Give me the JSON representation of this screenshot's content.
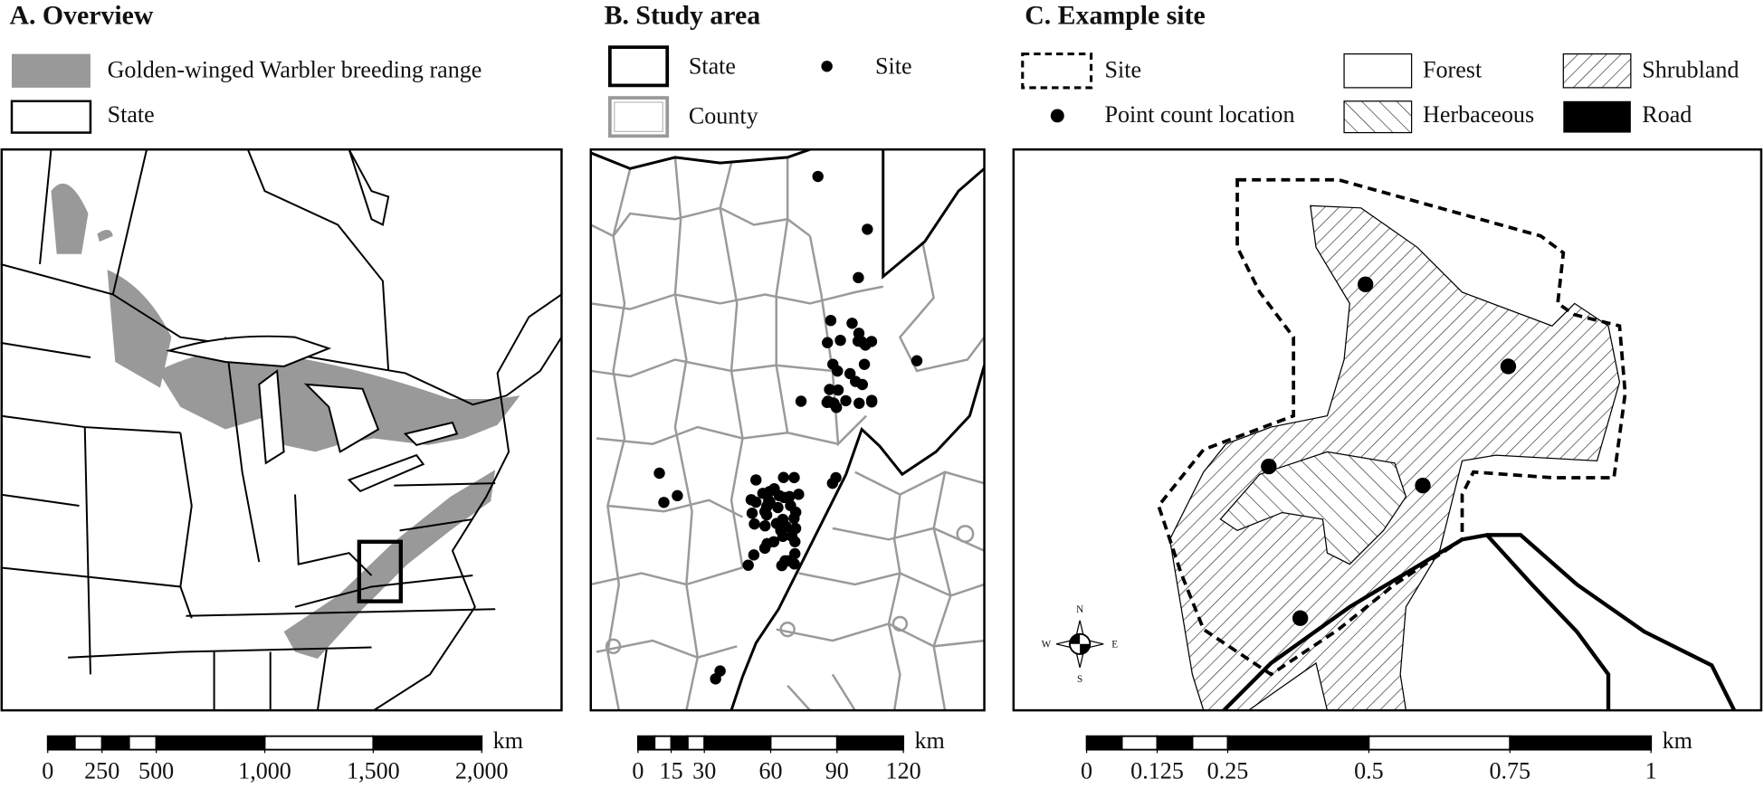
{
  "panels": [
    {
      "title": "A. Overview",
      "legend": [
        "Golden-winged Warbler breeding range",
        "State"
      ],
      "scale_bar": {
        "unit": "km",
        "ticks": [
          0,
          250,
          500,
          {
            "value": 1000,
            "label": "1,000"
          },
          {
            "value": 1500,
            "label": "1,500"
          },
          {
            "value": 2000,
            "label": "2,000"
          }
        ]
      }
    },
    {
      "title": "B. Study area",
      "legend": [
        "State",
        "Site",
        "County"
      ],
      "scale_bar": {
        "unit": "km",
        "ticks": [
          0,
          15,
          30,
          60,
          90,
          120
        ]
      }
    },
    {
      "title": "C. Example site",
      "legend": [
        "Site",
        "Point count location",
        "Forest",
        "Herbaceous",
        "Shrubland",
        "Road"
      ],
      "scale_bar": {
        "unit": "km",
        "ticks": [
          0,
          0.125,
          0.25,
          0.5,
          0.75,
          1
        ]
      },
      "compass": [
        "N",
        "S",
        "W",
        "E"
      ]
    }
  ]
}
